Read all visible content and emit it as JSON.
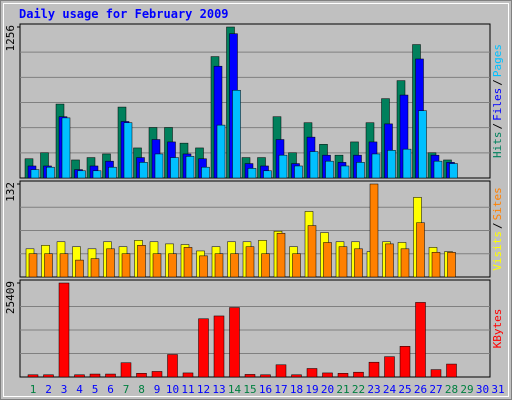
{
  "chart_data": [
    {
      "type": "bar",
      "title": "Daily usage for February 2009",
      "ylim": [
        0,
        1256
      ],
      "yticks": [
        1256
      ],
      "grid": true,
      "separator": "/",
      "series": [
        {
          "name": "Hits",
          "color": "#00805c",
          "values": [
            160,
            210,
            615,
            150,
            170,
            200,
            590,
            250,
            420,
            420,
            290,
            250,
            1010,
            1256,
            170,
            170,
            510,
            210,
            460,
            280,
            190,
            300,
            460,
            660,
            810,
            1110,
            210,
            150,
            null,
            null,
            null
          ]
        },
        {
          "name": "Files",
          "color": "#0000ff",
          "values": [
            100,
            100,
            510,
            70,
            100,
            140,
            470,
            170,
            320,
            300,
            200,
            160,
            930,
            1200,
            120,
            100,
            320,
            120,
            340,
            190,
            130,
            190,
            300,
            450,
            690,
            990,
            190,
            130,
            null,
            null,
            null
          ]
        },
        {
          "name": "Pages",
          "color": "#00c0ff",
          "values": [
            70,
            90,
            500,
            60,
            60,
            90,
            460,
            130,
            200,
            170,
            180,
            90,
            440,
            730,
            80,
            60,
            190,
            100,
            220,
            140,
            100,
            130,
            200,
            230,
            240,
            560,
            140,
            120,
            null,
            null,
            null
          ]
        }
      ]
    },
    {
      "type": "bar",
      "ylim": [
        0,
        132
      ],
      "yticks": [
        132
      ],
      "grid": true,
      "separator": "/",
      "series": [
        {
          "name": "Visits",
          "color": "#ffff00",
          "values": [
            40,
            45,
            50,
            43,
            40,
            50,
            43,
            52,
            50,
            47,
            46,
            37,
            43,
            50,
            50,
            52,
            65,
            43,
            93,
            63,
            50,
            50,
            36,
            50,
            49,
            113,
            42,
            36,
            null,
            null,
            null
          ]
        },
        {
          "name": "Sites",
          "color": "#ff8000",
          "values": [
            33,
            33,
            33,
            24,
            26,
            40,
            33,
            45,
            33,
            33,
            42,
            30,
            33,
            33,
            43,
            33,
            62,
            33,
            73,
            49,
            43,
            40,
            132,
            47,
            40,
            77,
            35,
            35,
            null,
            null,
            null
          ]
        }
      ]
    },
    {
      "type": "bar",
      "ylim": [
        0,
        25409
      ],
      "yticks": [
        25409
      ],
      "grid": true,
      "categories": [
        "1",
        "2",
        "3",
        "4",
        "5",
        "6",
        "7",
        "8",
        "9",
        "10",
        "11",
        "12",
        "13",
        "14",
        "15",
        "16",
        "17",
        "18",
        "19",
        "20",
        "21",
        "22",
        "23",
        "24",
        "25",
        "26",
        "27",
        "28",
        "29",
        "30",
        "31"
      ],
      "category_colors": [
        "#008040",
        "#0000ff",
        "#0000ff",
        "#0000ff",
        "#0000ff",
        "#0000ff",
        "#008040",
        "#008040",
        "#0000ff",
        "#0000ff",
        "#0000ff",
        "#0000ff",
        "#0000ff",
        "#008040",
        "#008040",
        "#0000ff",
        "#0000ff",
        "#0000ff",
        "#0000ff",
        "#0000ff",
        "#008040",
        "#008040",
        "#0000ff",
        "#0000ff",
        "#0000ff",
        "#0000ff",
        "#0000ff",
        "#008040",
        "#008040",
        "#0000ff",
        "#0000ff"
      ],
      "series": [
        {
          "name": "KBytes",
          "color": "#ff0000",
          "values": [
            600,
            600,
            25409,
            600,
            800,
            800,
            3860,
            1000,
            1500,
            6080,
            1100,
            15740,
            16500,
            18780,
            700,
            600,
            3300,
            600,
            2300,
            1100,
            1000,
            1300,
            4000,
            5500,
            8300,
            20160,
            2000,
            3500,
            null,
            null,
            null
          ]
        }
      ]
    }
  ]
}
